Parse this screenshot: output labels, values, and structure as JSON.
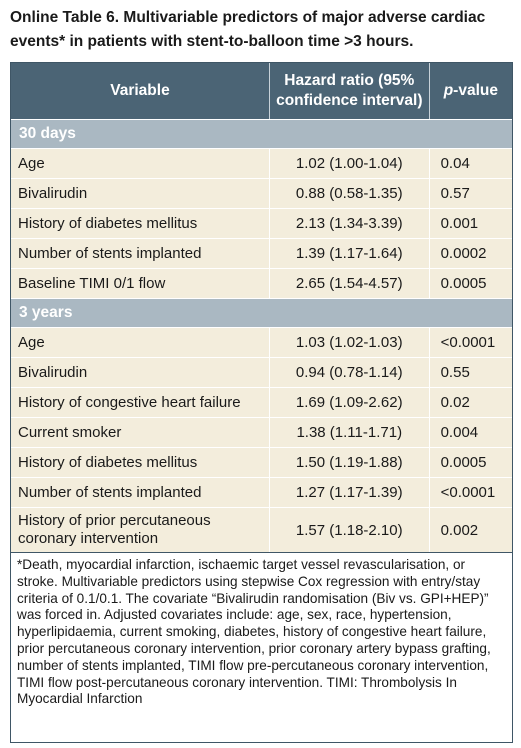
{
  "caption": "Online Table 6. Multivariable predictors of major adverse cardiac events* in patients with stent-to-balloon time >3 hours.",
  "header": {
    "variable": "Variable",
    "hazard_ratio": "Hazard ratio (95% confidence interval)",
    "p_label": "p",
    "p_suffix": "-value"
  },
  "sections": [
    {
      "title": "30 days",
      "rows": [
        {
          "variable": "Age",
          "hr": "1.02 (1.00-1.04)",
          "p": "0.04"
        },
        {
          "variable": "Bivalirudin",
          "hr": "0.88 (0.58-1.35)",
          "p": "0.57"
        },
        {
          "variable": "History of diabetes mellitus",
          "hr": "2.13 (1.34-3.39)",
          "p": "0.001"
        },
        {
          "variable": "Number of stents implanted",
          "hr": "1.39 (1.17-1.64)",
          "p": "0.0002"
        },
        {
          "variable": "Baseline TIMI 0/1 flow",
          "hr": "2.65 (1.54-4.57)",
          "p": "0.0005"
        }
      ]
    },
    {
      "title": "3 years",
      "rows": [
        {
          "variable": "Age",
          "hr": "1.03 (1.02-1.03)",
          "p": "<0.0001"
        },
        {
          "variable": "Bivalirudin",
          "hr": "0.94 (0.78-1.14)",
          "p": "0.55"
        },
        {
          "variable": "History of congestive heart failure",
          "hr": "1.69 (1.09-2.62)",
          "p": "0.02"
        },
        {
          "variable": "Current smoker",
          "hr": "1.38 (1.11-1.71)",
          "p": "0.004"
        },
        {
          "variable": "History of diabetes mellitus",
          "hr": "1.50 (1.19-1.88)",
          "p": "0.0005"
        },
        {
          "variable": "Number of stents implanted",
          "hr": "1.27 (1.17-1.39)",
          "p": "<0.0001"
        },
        {
          "variable": "History of prior percutaneous coronary intervention",
          "hr": "1.57 (1.18-2.10)",
          "p": "0.002"
        }
      ]
    }
  ],
  "footnote": "*Death, myocardial infarction, ischaemic target vessel revascularisation, or stroke. Multivariable predictors using stepwise Cox regression with entry/stay criteria of 0.1/0.1. The covariate “Bivalirudin randomisation (Biv vs. GPI+HEP)” was forced in. Adjusted covariates include: age, sex, race, hypertension, hyperlipidaemia, current smoking, diabetes, history of congestive heart failure, prior percutaneous coronary intervention, prior coronary artery bypass grafting, number of stents implanted, TIMI flow pre-percutaneous coronary intervention, TIMI flow post-percutaneous coronary intervention. TIMI: Thrombolysis In Myocardial Infarction",
  "colors": {
    "header_bg": "#4b6475",
    "section_bg": "#aab8c2",
    "row_bg": "#f3eddc",
    "border": "#3f5666"
  }
}
